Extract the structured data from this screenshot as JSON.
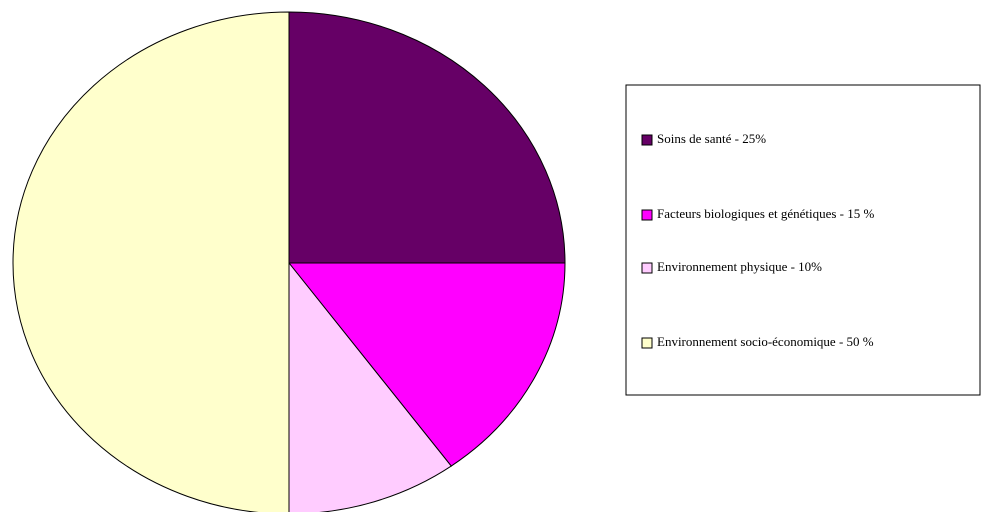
{
  "chart_data": {
    "type": "pie",
    "categories": [
      "Soins de santé - 25%",
      "Facteurs biologiques et génétiques - 15 %",
      "Environnement physique - 10%",
      "Environnement socio-économique - 50 %"
    ],
    "values": [
      25,
      15,
      10,
      50
    ],
    "colors": [
      "#660066",
      "#ff00ff",
      "#ffccff",
      "#ffffcc"
    ],
    "legend": "right"
  }
}
